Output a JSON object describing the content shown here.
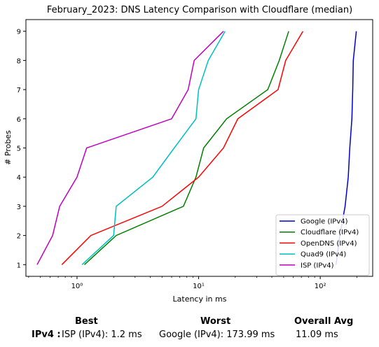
{
  "chart_data": {
    "type": "line",
    "title": "February_2023: DNS Latency Comparison with Cloudflare (median)",
    "xlabel": "Latency in ms",
    "ylabel": "# Probes",
    "xscale": "log",
    "xlim": [
      0.38,
      270
    ],
    "ylim": [
      0.6,
      9.4
    ],
    "xticks": [
      {
        "value": 1,
        "label": "10⁰"
      },
      {
        "value": 10,
        "label": "10¹"
      },
      {
        "value": 100,
        "label": "10²"
      }
    ],
    "yticks": [
      1,
      2,
      3,
      4,
      5,
      6,
      7,
      8,
      9
    ],
    "grid": false,
    "legend_position": "lower-right",
    "series": [
      {
        "name": "Google (IPv4)",
        "color": "#0000cc",
        "points": [
          [
            135,
            1
          ],
          [
            145,
            2
          ],
          [
            160,
            3
          ],
          [
            170,
            4
          ],
          [
            175,
            5
          ],
          [
            182,
            6
          ],
          [
            185,
            7
          ],
          [
            187,
            8
          ],
          [
            198,
            9
          ]
        ]
      },
      {
        "name": "Cloudflare (IPv4)",
        "color": "#008000",
        "points": [
          [
            1.15,
            1
          ],
          [
            2.1,
            2
          ],
          [
            7.5,
            3
          ],
          [
            9.5,
            4
          ],
          [
            11,
            5
          ],
          [
            17,
            6
          ],
          [
            37,
            7
          ],
          [
            46,
            8
          ],
          [
            55,
            9
          ]
        ]
      },
      {
        "name": "OpenDNS (IPv4)",
        "color": "#ff0000",
        "points": [
          [
            0.75,
            1
          ],
          [
            1.3,
            2
          ],
          [
            5,
            3
          ],
          [
            10,
            4
          ],
          [
            16,
            5
          ],
          [
            21,
            6
          ],
          [
            45,
            7
          ],
          [
            52,
            8
          ],
          [
            72,
            9
          ]
        ]
      },
      {
        "name": "Quad9 (IPv4)",
        "color": "#00bfbf",
        "points": [
          [
            1.1,
            1
          ],
          [
            2.0,
            2
          ],
          [
            2.1,
            3
          ],
          [
            4.2,
            4
          ],
          [
            6.3,
            5
          ],
          [
            9.5,
            6
          ],
          [
            10,
            7
          ],
          [
            12,
            8
          ],
          [
            16.5,
            9
          ]
        ]
      },
      {
        "name": "ISP (IPv4)",
        "color": "#bf00bf",
        "points": [
          [
            0.47,
            1
          ],
          [
            0.63,
            2
          ],
          [
            0.72,
            3
          ],
          [
            1.0,
            4
          ],
          [
            1.2,
            5
          ],
          [
            6,
            6
          ],
          [
            8.2,
            7
          ],
          [
            9.2,
            8
          ],
          [
            16,
            9
          ]
        ]
      }
    ]
  },
  "summary": {
    "best_header": "Best",
    "worst_header": "Worst",
    "avg_header": "Overall Avg",
    "row_label": "IPv4 :",
    "best_value": "ISP (IPv4): 1.2 ms",
    "worst_value": "Google (IPv4): 173.99 ms",
    "avg_value": "11.09 ms"
  }
}
